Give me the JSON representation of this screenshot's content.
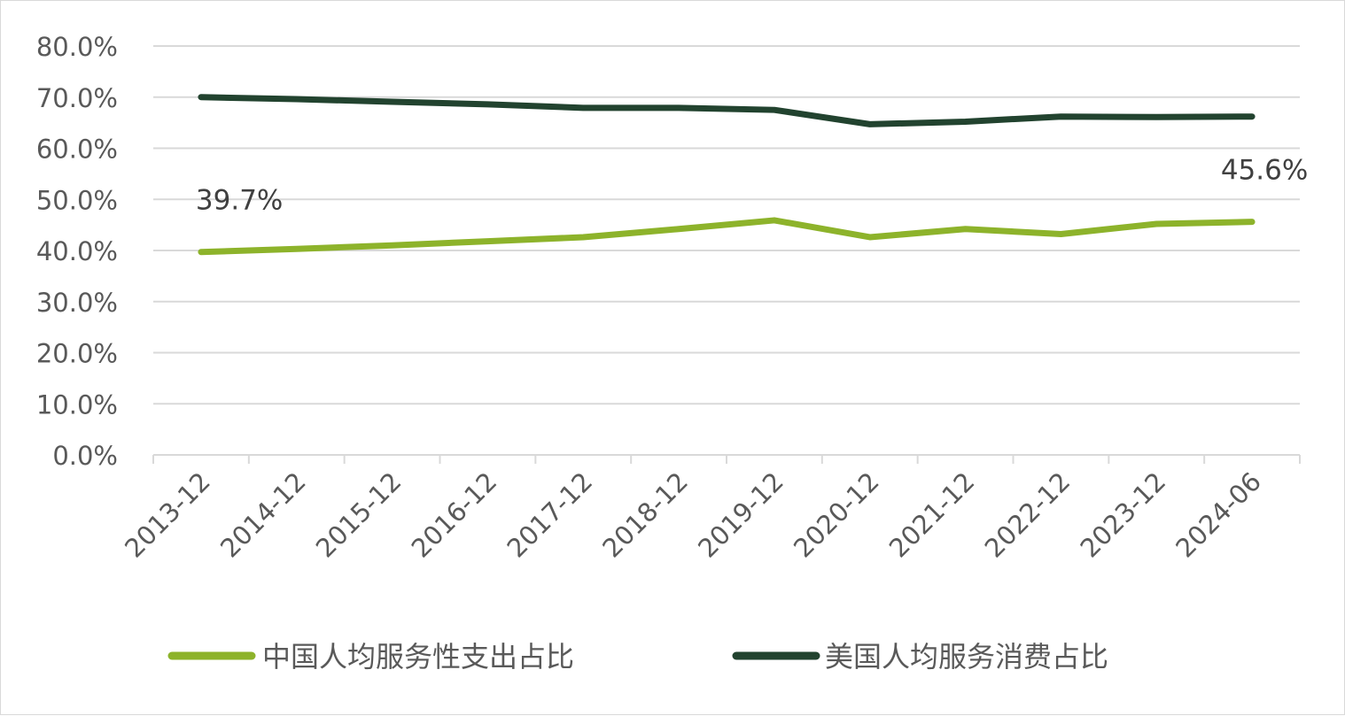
{
  "chart_data": {
    "type": "line",
    "title": "",
    "xlabel": "",
    "ylabel": "",
    "categories": [
      "2013-12",
      "2014-12",
      "2015-12",
      "2016-12",
      "2017-12",
      "2018-12",
      "2019-12",
      "2020-12",
      "2021-12",
      "2022-12",
      "2023-12",
      "2024-06"
    ],
    "ylim": [
      0,
      80
    ],
    "yticks": [
      "0.0%",
      "10.0%",
      "20.0%",
      "30.0%",
      "40.0%",
      "50.0%",
      "60.0%",
      "70.0%",
      "80.0%"
    ],
    "grid": true,
    "legend_position": "bottom",
    "series": [
      {
        "name": "中国人均服务性支出占比",
        "color": "#8db32b",
        "values": [
          39.7,
          40.3,
          41.0,
          41.8,
          42.6,
          44.2,
          45.9,
          42.6,
          44.2,
          43.2,
          45.2,
          45.6
        ]
      },
      {
        "name": "美国人均服务消费占比",
        "color": "#22432f",
        "values": [
          70.0,
          69.6,
          69.1,
          68.6,
          67.9,
          67.9,
          67.5,
          64.7,
          65.2,
          66.2,
          66.1,
          66.2
        ]
      }
    ],
    "annotations": [
      {
        "series": 0,
        "index": 0,
        "text": "39.7%"
      },
      {
        "series": 0,
        "index": 11,
        "text": "45.6%"
      }
    ]
  }
}
